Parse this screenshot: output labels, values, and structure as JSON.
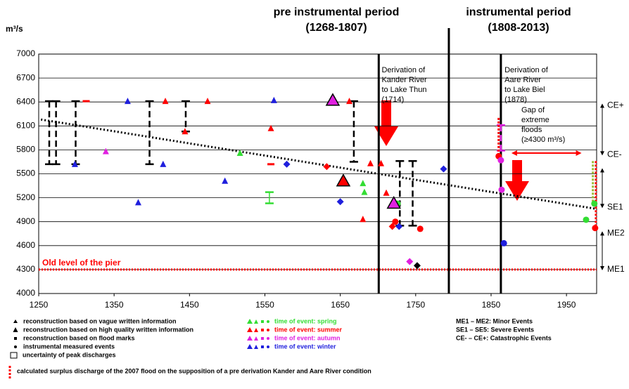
{
  "chart_data": {
    "type": "scatter",
    "y_label": "m³/s",
    "periods": [
      {
        "title": "pre instrumental period",
        "range": "(1268-1807)"
      },
      {
        "title": "instrumental period",
        "range": "(1808-2013)"
      }
    ],
    "xlim": [
      1250,
      1990
    ],
    "xticks": [
      1250,
      1350,
      1450,
      1550,
      1650,
      1750,
      1850,
      1950
    ],
    "ylim": [
      4000,
      7000
    ],
    "yticks": [
      4000,
      4300,
      4600,
      4900,
      5200,
      5500,
      5800,
      6100,
      6400,
      6700,
      7000
    ],
    "grid": true,
    "series": [
      {
        "name": "time of event: spring",
        "color": "#33dd33",
        "x": [
          1517,
          1680,
          1682,
          1726,
          1976,
          1987
        ],
        "y": [
          5760,
          5380,
          5270,
          5126,
          4924,
          5126
        ],
        "markers": [
          "triangle",
          "triangle",
          "triangle",
          "circle",
          "circle",
          "circle"
        ]
      },
      {
        "name": "time of event: summer",
        "color": "#ff0000",
        "x": [
          1313,
          1418,
          1444,
          1474,
          1558,
          1558,
          1632,
          1662,
          1654,
          1690,
          1704,
          1680,
          1711,
          1719,
          1723,
          1756,
          1860,
          1988
        ],
        "y": [
          6410,
          6410,
          6030,
          6410,
          6070,
          5620,
          5590,
          6410,
          5410,
          5630,
          5630,
          4930,
          5260,
          4840,
          4900,
          4810,
          5720,
          4820
        ],
        "markers": [
          "dash",
          "triangle",
          "triangle",
          "triangle",
          "triangle",
          "dash",
          "diamond",
          "triangle",
          "big-triangle",
          "triangle",
          "triangle",
          "triangle",
          "triangle",
          "diamond",
          "circle",
          "circle",
          "circle",
          "circle"
        ]
      },
      {
        "name": "time of event: autumn",
        "color": "#e020e0",
        "x": [
          1339,
          1640,
          1721,
          1742,
          1863,
          1864
        ],
        "y": [
          5780,
          6420,
          5130,
          4400,
          5670,
          5300
        ],
        "markers": [
          "triangle",
          "big-triangle",
          "big-triangle",
          "diamond",
          "circle",
          "circle"
        ]
      },
      {
        "name": "time of event: winter",
        "color": "#1f1fdd",
        "x": [
          1298,
          1368,
          1382,
          1415,
          1497,
          1562,
          1579,
          1650,
          1728,
          1787,
          1867
        ],
        "y": [
          5620,
          6410,
          5140,
          5620,
          5410,
          6420,
          5620,
          5150,
          4840,
          5560,
          4630
        ],
        "markers": [
          "triangle",
          "triangle",
          "triangle",
          "triangle",
          "triangle",
          "triangle",
          "diamond",
          "diamond",
          "diamond",
          "diamond",
          "circle"
        ]
      },
      {
        "color": "#000000",
        "x": [
          1752
        ],
        "y": [
          4350
        ],
        "markers": [
          "diamond"
        ]
      }
    ],
    "ranges": {
      "x": [
        1264,
        1273,
        1299,
        1397,
        1445,
        1668,
        1729,
        1746,
        1556,
        1863,
        1860,
        1985,
        1989
      ],
      "low": [
        5620,
        5620,
        5620,
        5620,
        6030,
        5650,
        4850,
        4850,
        5130,
        5790,
        5720,
        5100,
        4820
      ],
      "high": [
        6410,
        6410,
        6410,
        6410,
        6410,
        6410,
        5660,
        5660,
        5270,
        6110,
        6200,
        5660,
        5660
      ],
      "colors": [
        "#000000",
        "#000000",
        "#000000",
        "#000000",
        "#000000",
        "#000000",
        "#000000",
        "#000000",
        "#33dd33",
        "#e020e0",
        "#ff0000",
        "#99bb33",
        "#ff0000"
      ],
      "styles": [
        "dashed",
        "dashed",
        "dashed",
        "dashed",
        "dashed",
        "dashed",
        "dashed",
        "dashed",
        "solid",
        "dashed",
        "dotted",
        "dotted",
        "dotted"
      ]
    },
    "trend": {
      "x": [
        1253,
        1990
      ],
      "y": [
        6180,
        5060
      ]
    },
    "pier": {
      "label": "Old level of the pier",
      "value": 4300
    },
    "period_lines": [
      1701,
      1794,
      1863
    ],
    "annotations": [
      {
        "x": 1703,
        "lines": [
          "Derivation of",
          "Kander River",
          "to Lake Thun",
          "(1714)"
        ]
      },
      {
        "x": 1866,
        "lines": [
          "Derivation of",
          "Aare River",
          "to Lake Biel",
          "(1878)"
        ]
      }
    ],
    "gap": {
      "lines": [
        "Gap of",
        "extreme",
        "floods",
        "(≥4300 m³/s)"
      ],
      "x": [
        1877,
        1970
      ],
      "value": 5760
    },
    "bands": [
      {
        "high": 6380,
        "low": 5730,
        "top": "CE+",
        "bottom": "CE-"
      },
      {
        "high": 5570,
        "low": 5070,
        "bottom": "SE1"
      },
      {
        "high": 4780,
        "low": 4290,
        "top": "ME2",
        "bottom": "ME1"
      }
    ],
    "legend_methods": [
      "reconstruction based on vague written information",
      "reconstruction based on high quality written information",
      "reconstruction based on flood marks",
      "instrumental measured events",
      "uncertainty of peak discharges"
    ],
    "legend_classes": [
      "ME1 – ME2: Minor Events",
      "SE1 – SE5: Severe Events",
      "CE- – CE+: Catastrophic Events"
    ],
    "note": "calculated surplus discharge of the 2007 flood on the supposition of a pre derivation Kander and Aare River condition"
  }
}
